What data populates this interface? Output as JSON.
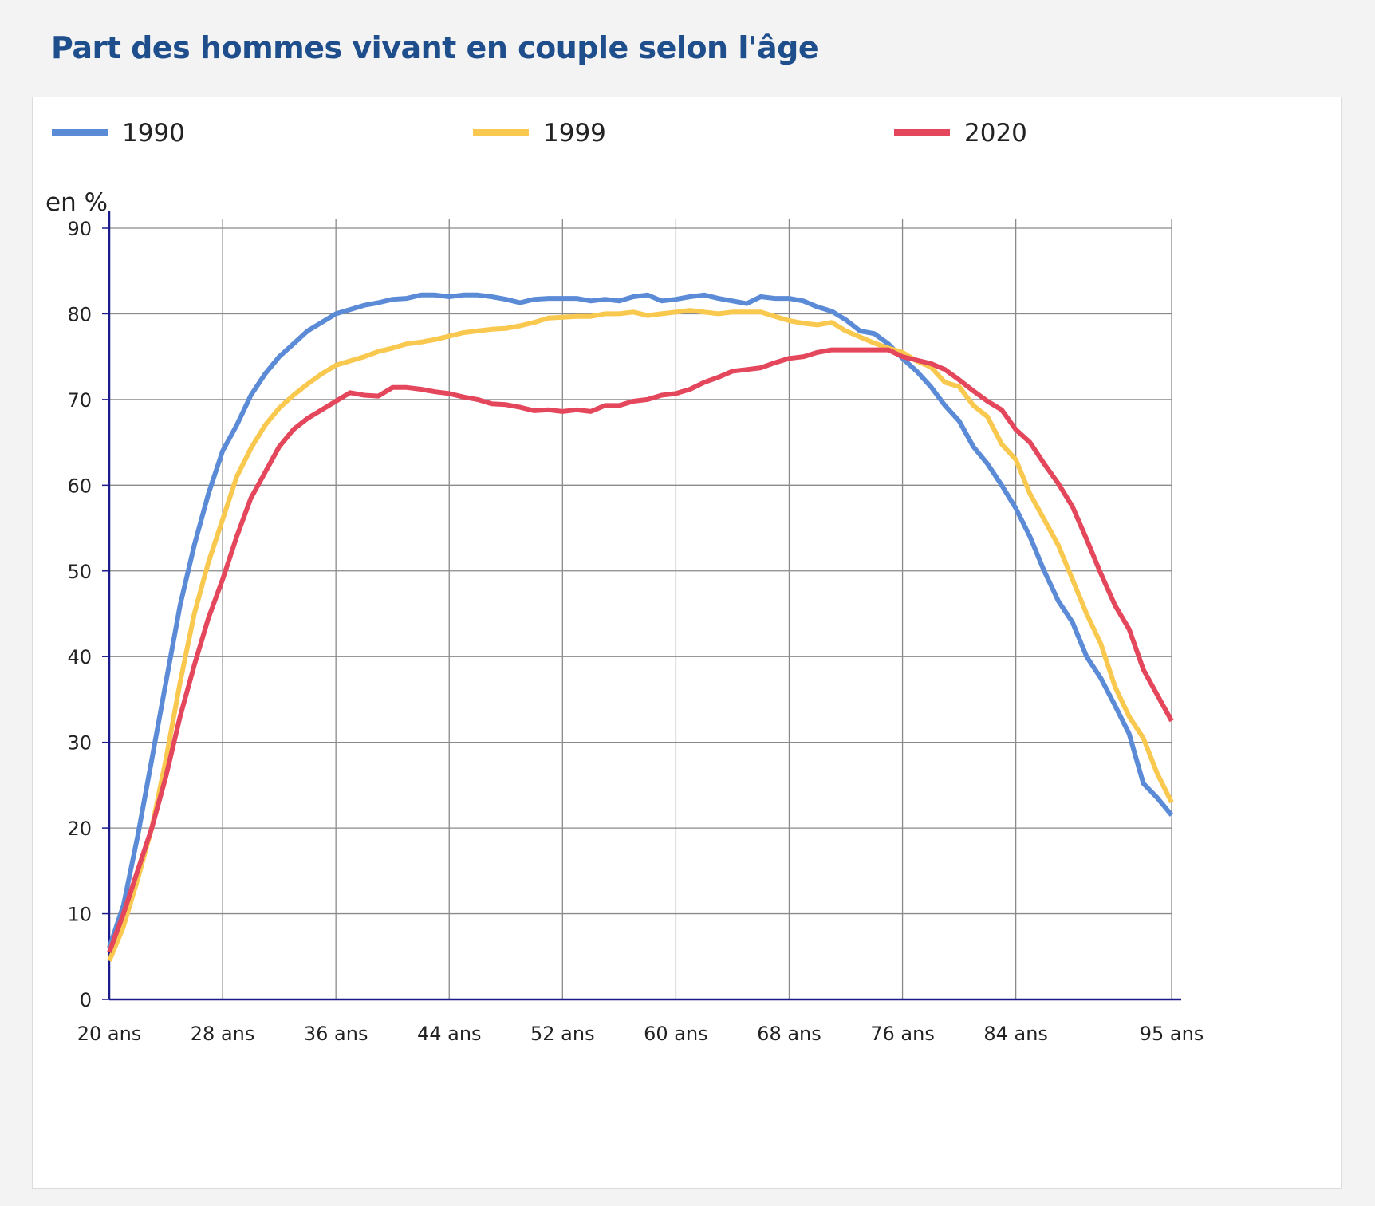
{
  "title": "Part des hommes vivant en couple selon l'âge",
  "chart_data": {
    "type": "line",
    "title": "Part des hommes vivant en couple selon l'âge",
    "ylabel": "en %",
    "xlabel": "",
    "xlim": [
      20,
      95
    ],
    "ylim": [
      0,
      90
    ],
    "yticks": [
      0,
      10,
      20,
      30,
      40,
      50,
      60,
      70,
      80,
      90
    ],
    "xtick_values": [
      20,
      28,
      36,
      44,
      52,
      60,
      68,
      76,
      84,
      95
    ],
    "xtick_labels": [
      "20 ans",
      "28 ans",
      "36 ans",
      "44 ans",
      "52 ans",
      "60 ans",
      "68 ans",
      "76 ans",
      "84 ans",
      "95 ans"
    ],
    "grid": true,
    "legend_position": "top",
    "x": [
      20,
      21,
      22,
      23,
      24,
      25,
      26,
      27,
      28,
      29,
      30,
      31,
      32,
      33,
      34,
      35,
      36,
      37,
      38,
      39,
      40,
      41,
      42,
      43,
      44,
      45,
      46,
      47,
      48,
      49,
      50,
      51,
      52,
      53,
      54,
      55,
      56,
      57,
      58,
      59,
      60,
      61,
      62,
      63,
      64,
      65,
      66,
      67,
      68,
      69,
      70,
      71,
      72,
      73,
      74,
      75,
      76,
      77,
      78,
      79,
      80,
      81,
      82,
      83,
      84,
      85,
      86,
      87,
      88,
      89,
      90,
      91,
      92,
      93,
      94,
      95
    ],
    "series": [
      {
        "name": "1990",
        "color": "#5b8bd6",
        "values": [
          6,
          11,
          19,
          28,
          37,
          46,
          53,
          59,
          64,
          67,
          70.5,
          73,
          75,
          76.5,
          78,
          79,
          80,
          80.5,
          81,
          81.3,
          81.7,
          81.8,
          82.2,
          82.2,
          82,
          82.2,
          82.2,
          82,
          81.7,
          81.3,
          81.7,
          81.8,
          81.8,
          81.8,
          81.5,
          81.7,
          81.5,
          82,
          82.2,
          81.5,
          81.7,
          82,
          82.2,
          81.8,
          81.5,
          81.2,
          82,
          81.8,
          81.8,
          81.5,
          80.8,
          80.3,
          79.3,
          78,
          77.7,
          76.5,
          74.8,
          73.3,
          71.5,
          69.3,
          67.5,
          64.5,
          62.5,
          60,
          57.3,
          54,
          50,
          46.5,
          44,
          40,
          37.5,
          34.3,
          31,
          25.2,
          23.5,
          21.5
        ]
      },
      {
        "name": "1999",
        "color": "#f9c84f",
        "values": [
          4.5,
          8.5,
          14,
          20,
          28,
          37,
          45,
          51,
          56,
          61,
          64.3,
          67,
          69,
          70.5,
          71.8,
          73,
          74,
          74.5,
          75,
          75.6,
          76,
          76.5,
          76.7,
          77,
          77.4,
          77.8,
          78,
          78.2,
          78.3,
          78.6,
          79,
          79.5,
          79.6,
          79.7,
          79.7,
          80,
          80,
          80.2,
          79.8,
          80,
          80.2,
          80.4,
          80.2,
          80,
          80.2,
          80.2,
          80.2,
          79.7,
          79.2,
          78.9,
          78.7,
          79,
          78,
          77.3,
          76.6,
          76,
          75.5,
          74.5,
          73.8,
          72,
          71.5,
          69.3,
          68,
          64.8,
          63,
          59,
          56,
          53,
          49,
          45,
          41.5,
          36.5,
          33,
          30.5,
          26.3,
          23
        ]
      },
      {
        "name": "2020",
        "color": "#e4475c",
        "values": [
          5.5,
          10,
          15,
          20,
          26,
          33,
          39,
          44.5,
          49,
          54,
          58.5,
          61.5,
          64.5,
          66.5,
          67.8,
          68.8,
          69.8,
          70.8,
          70.5,
          70.4,
          71.4,
          71.4,
          71.2,
          70.9,
          70.7,
          70.3,
          70,
          69.5,
          69.4,
          69.1,
          68.7,
          68.8,
          68.6,
          68.8,
          68.6,
          69.3,
          69.3,
          69.8,
          70,
          70.5,
          70.7,
          71.2,
          72,
          72.6,
          73.3,
          73.5,
          73.7,
          74.3,
          74.8,
          75,
          75.5,
          75.8,
          75.8,
          75.8,
          75.8,
          75.8,
          75,
          74.6,
          74.2,
          73.5,
          72.3,
          71,
          69.8,
          68.8,
          66.5,
          65,
          62.5,
          60.2,
          57.5,
          53.7,
          49.7,
          46,
          43.2,
          38.5,
          35.5,
          32.5
        ]
      }
    ]
  }
}
